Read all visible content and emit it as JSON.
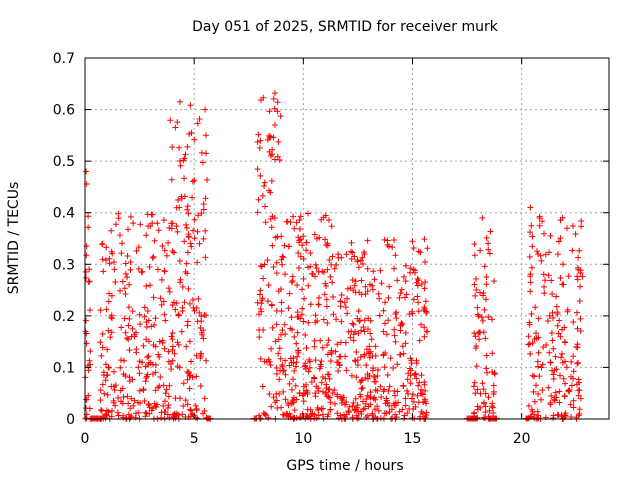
{
  "chart_data": {
    "type": "scatter",
    "title": "Day 051 of 2025, SRMTID for receiver murk",
    "xlabel": "GPS time / hours",
    "ylabel": "SRMTID / TECUs",
    "xlim": [
      0,
      24
    ],
    "ylim": [
      0,
      0.7
    ],
    "xticks": [
      0,
      5,
      10,
      15,
      20
    ],
    "xtick_labels": [
      "0",
      "5",
      "10",
      "15",
      "20"
    ],
    "yticks": [
      0,
      0.1,
      0.2,
      0.3,
      0.4,
      0.5,
      0.6,
      0.7
    ],
    "ytick_labels": [
      "0",
      "0.1",
      "0.2",
      "0.3",
      "0.4",
      "0.5",
      "0.6",
      "0.7"
    ],
    "grid": true,
    "marker": "+",
    "color": "#ff0000",
    "series": [
      {
        "name": "SRMTID",
        "clusters": [
          {
            "x_range": [
              0.0,
              0.25
            ],
            "y_max": 0.48,
            "count": 30
          },
          {
            "x_range": [
              0.7,
              3.9
            ],
            "y_max": 0.4,
            "count": 260
          },
          {
            "x_range": [
              3.9,
              5.6
            ],
            "y_max": 0.62,
            "count": 170
          },
          {
            "x_range": [
              7.9,
              9.0
            ],
            "y_max": 0.63,
            "count": 110
          },
          {
            "x_range": [
              9.0,
              11.3
            ],
            "y_max": 0.4,
            "count": 240
          },
          {
            "x_range": [
              11.3,
              14.3
            ],
            "y_max": 0.35,
            "count": 260
          },
          {
            "x_range": [
              14.3,
              15.7
            ],
            "y_max": 0.35,
            "count": 120
          },
          {
            "x_range": [
              17.8,
              18.8
            ],
            "y_max": 0.39,
            "count": 80
          },
          {
            "x_range": [
              20.3,
              22.8
            ],
            "y_max": 0.41,
            "count": 200
          }
        ],
        "highlights": [
          {
            "x": 4.35,
            "y": 0.615
          },
          {
            "x": 5.5,
            "y": 0.6
          },
          {
            "x": 8.7,
            "y": 0.632
          },
          {
            "x": 8.7,
            "y": 0.57
          },
          {
            "x": 0.05,
            "y": 0.48
          },
          {
            "x": 20.4,
            "y": 0.41
          },
          {
            "x": 18.2,
            "y": 0.39
          }
        ],
        "zero_segments": [
          [
            0.3,
            0.8
          ],
          [
            5.6,
            5.75
          ],
          [
            7.75,
            7.85
          ],
          [
            17.5,
            18.0
          ],
          [
            18.5,
            18.9
          ],
          [
            20.2,
            20.3
          ]
        ]
      }
    ]
  }
}
